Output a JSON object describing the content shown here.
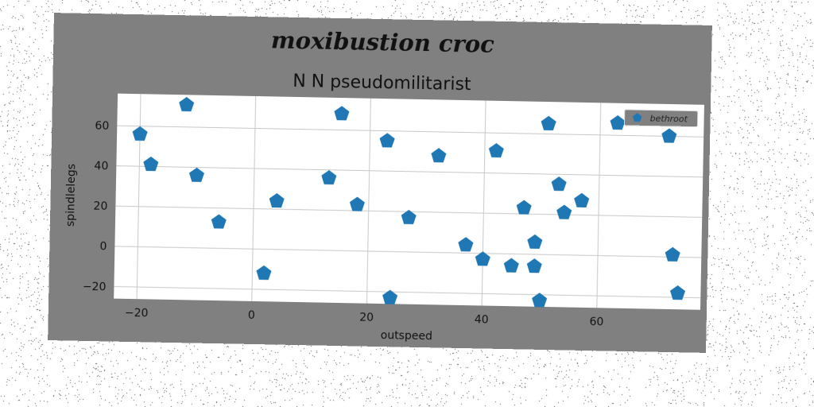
{
  "suptitle": "moxibustion croc",
  "chart_data": {
    "type": "scatter",
    "title": "N N pseudomilitarist",
    "xlabel": "outspeed",
    "ylabel": "spindlelegs",
    "xlim": [
      -24,
      78
    ],
    "ylim": [
      -26,
      76
    ],
    "xticks": [
      -20,
      0,
      20,
      40,
      60
    ],
    "yticks": [
      -20,
      0,
      20,
      40,
      60
    ],
    "grid": true,
    "legend": "top-right",
    "marker": "pentagon",
    "series": [
      {
        "name": "bethroot",
        "color": "#1f77b4",
        "points": [
          [
            -20,
            56
          ],
          [
            -18,
            41
          ],
          [
            -12,
            71
          ],
          [
            -10,
            36
          ],
          [
            -6,
            13
          ],
          [
            2,
            -12
          ],
          [
            4,
            24
          ],
          [
            13,
            36
          ],
          [
            15,
            68
          ],
          [
            18,
            23
          ],
          [
            23,
            55
          ],
          [
            24,
            -23
          ],
          [
            27,
            17
          ],
          [
            32,
            48
          ],
          [
            37,
            4
          ],
          [
            40,
            -3
          ],
          [
            42,
            51
          ],
          [
            45,
            -6
          ],
          [
            47,
            23
          ],
          [
            49,
            6
          ],
          [
            49,
            -6
          ],
          [
            50,
            -23
          ],
          [
            51,
            65
          ],
          [
            53,
            35
          ],
          [
            54,
            21
          ],
          [
            57,
            27
          ],
          [
            63,
            66
          ],
          [
            72,
            60
          ],
          [
            73,
            1
          ],
          [
            74,
            -18
          ]
        ]
      }
    ]
  }
}
